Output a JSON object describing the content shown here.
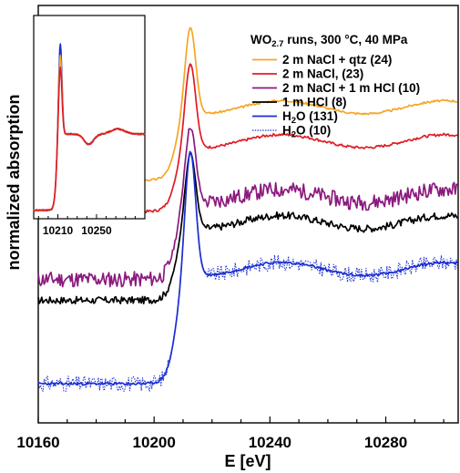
{
  "chart_data": [
    {
      "type": "line",
      "title": "",
      "xlabel": "E [eV]",
      "ylabel": "normalized absorption",
      "xlim": [
        10160,
        10305
      ],
      "ylim": [
        -0.15,
        1.45
      ],
      "x_ticks": [
        10160,
        10200,
        10240,
        10280
      ],
      "x_tick_labels": [
        "10160",
        "10200",
        "10240",
        "10280"
      ],
      "y_ticks_shown": false,
      "grid": false,
      "legend": {
        "placement": "top-right",
        "title_main": "WO",
        "title_sub": "2.7",
        "title_rest": " runs, 300 °C, 40 MPa"
      },
      "series": [
        {
          "name": "2 m NaCl + qtz (24)",
          "color": "#f5a623",
          "dash": "solid",
          "offset": 0.78,
          "amplitude": 0.62,
          "post_level": 0.28,
          "noise": 0.004,
          "seed": 3
        },
        {
          "name": "2 m NaCl, (23)",
          "color": "#e01b24",
          "dash": "solid",
          "offset": 0.66,
          "amplitude": 0.6,
          "post_level": 0.27,
          "noise": 0.005,
          "seed": 7
        },
        {
          "name": "2 m NaCl + 1 m HCl (10)",
          "color": "#8b1a7e",
          "dash": "solid",
          "offset": 0.4,
          "amplitude": 0.62,
          "post_level": 0.32,
          "noise": 0.03,
          "seed": 11
        },
        {
          "name": "1 m HCl (8)",
          "color": "#000000",
          "dash": "solid",
          "offset": 0.32,
          "amplitude": 0.6,
          "post_level": 0.3,
          "noise": 0.014,
          "seed": 17
        },
        {
          "name": "H2O (131)",
          "label_main": "H",
          "label_sub": "2",
          "label_rest": "O (131)",
          "color": "#1a2ed1",
          "dash": "solid",
          "offset": 0.0,
          "amplitude": 0.93,
          "post_level": 0.44,
          "noise": 0.005,
          "seed": 23
        },
        {
          "name": "H2O (10)",
          "label_main": "H",
          "label_sub": "2",
          "label_rest": "O (10)",
          "color": "#1a2ed1",
          "dash": "dotted",
          "offset": 0.0,
          "amplitude": 0.93,
          "post_level": 0.44,
          "noise": 0.03,
          "seed": 31
        }
      ]
    },
    {
      "type": "line",
      "title": "inset",
      "xlim": [
        10185,
        10300
      ],
      "x_ticks": [
        10210,
        10250
      ],
      "x_tick_labels": [
        "10210",
        "10250"
      ],
      "y_ticks_shown": false,
      "series": [
        {
          "name": "H2O",
          "color": "#1a2ed1",
          "peak": 1.0
        },
        {
          "name": "2 m NaCl + qtz",
          "color": "#f5a623",
          "peak": 0.93
        },
        {
          "name": "2 m NaCl",
          "color": "#e01b24",
          "peak": 0.86
        }
      ]
    }
  ]
}
